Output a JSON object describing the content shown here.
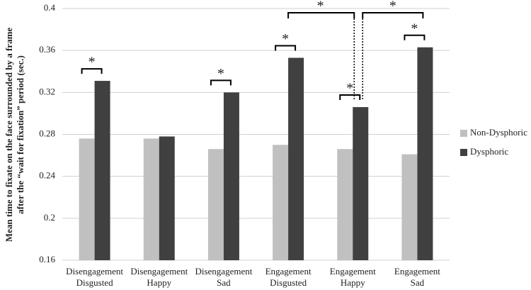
{
  "chart_data": {
    "type": "bar",
    "y_label": [
      "Mean time to fixate on the face surrounded by a frame",
      "after the “wait for fixation” period (sec.)"
    ],
    "categories": [
      [
        "Disengagement",
        "Disgusted"
      ],
      [
        "Disengagement",
        "Happy"
      ],
      [
        "Disengagement",
        "Sad"
      ],
      [
        "Engagement",
        "Disgusted"
      ],
      [
        "Engagement",
        "Happy"
      ],
      [
        "Engagement",
        "Sad"
      ]
    ],
    "series": [
      {
        "name": "Non-Dysphoric",
        "color": "#c0c0c0",
        "values": [
          0.276,
          0.276,
          0.266,
          0.27,
          0.266,
          0.261
        ]
      },
      {
        "name": "Dysphoric",
        "color": "#404040",
        "values": [
          0.331,
          0.278,
          0.32,
          0.353,
          0.306,
          0.363
        ]
      }
    ],
    "ylim": [
      0.16,
      0.4
    ],
    "yticks": [
      0.16,
      0.2,
      0.24,
      0.28,
      0.32,
      0.36,
      0.4
    ],
    "grid": true,
    "legend": "right",
    "annotations": [
      "*",
      "*",
      "*",
      "*",
      "*",
      "*",
      "*"
    ]
  }
}
